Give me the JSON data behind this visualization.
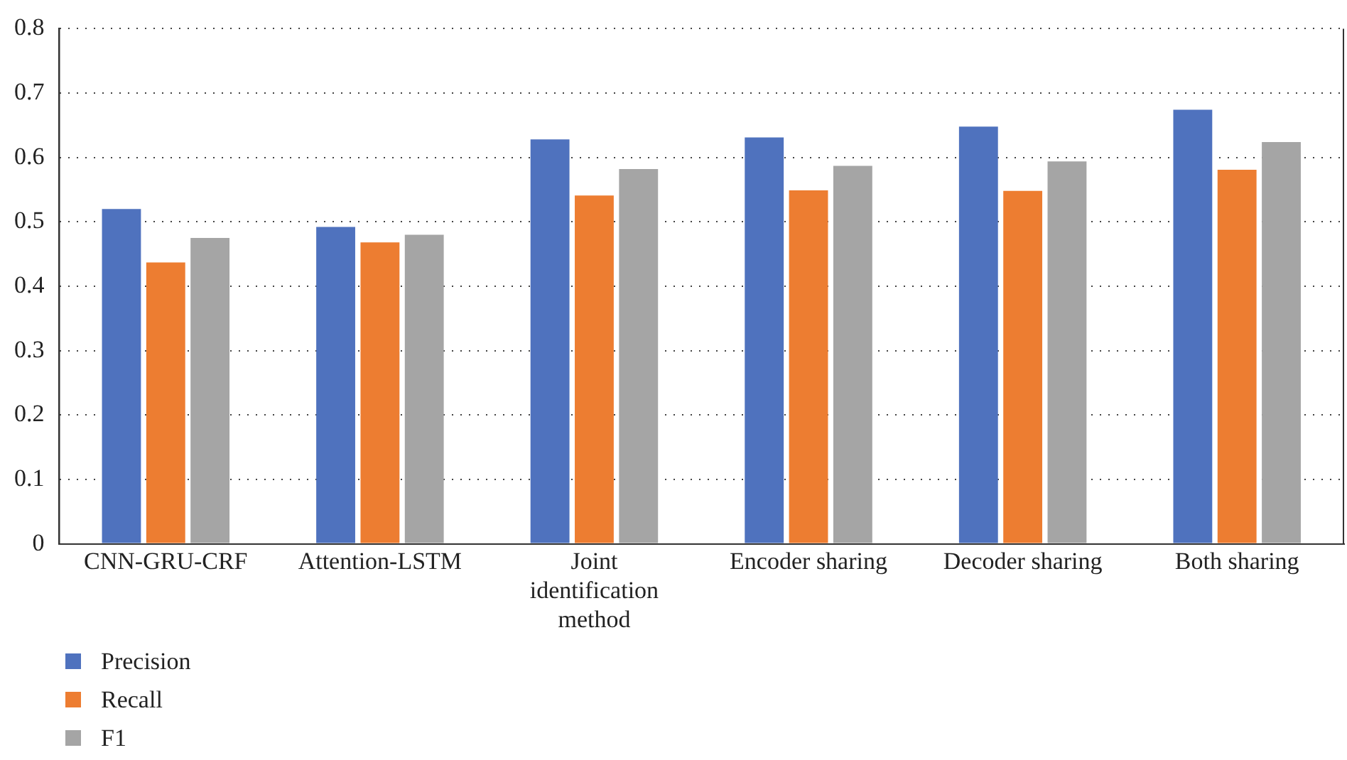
{
  "chart_data": {
    "type": "bar",
    "categories": [
      "CNN-GRU-CRF",
      "Attention-LSTM",
      "Joint identification method",
      "Encoder sharing",
      "Decoder sharing",
      "Both sharing"
    ],
    "series": [
      {
        "name": "Precision",
        "color": "#4f72be",
        "values": [
          0.52,
          0.492,
          0.628,
          0.631,
          0.648,
          0.674
        ]
      },
      {
        "name": "Recall",
        "color": "#ed7d31",
        "values": [
          0.437,
          0.468,
          0.541,
          0.549,
          0.548,
          0.581
        ]
      },
      {
        "name": "F1",
        "color": "#a5a5a5",
        "values": [
          0.475,
          0.48,
          0.582,
          0.587,
          0.594,
          0.624
        ]
      }
    ],
    "ylim": [
      0,
      0.8
    ],
    "yticks": [
      0,
      0.1,
      0.2,
      0.3,
      0.4,
      0.5,
      0.6,
      0.7,
      0.8
    ],
    "grid": "y",
    "legend": "bottom left"
  }
}
